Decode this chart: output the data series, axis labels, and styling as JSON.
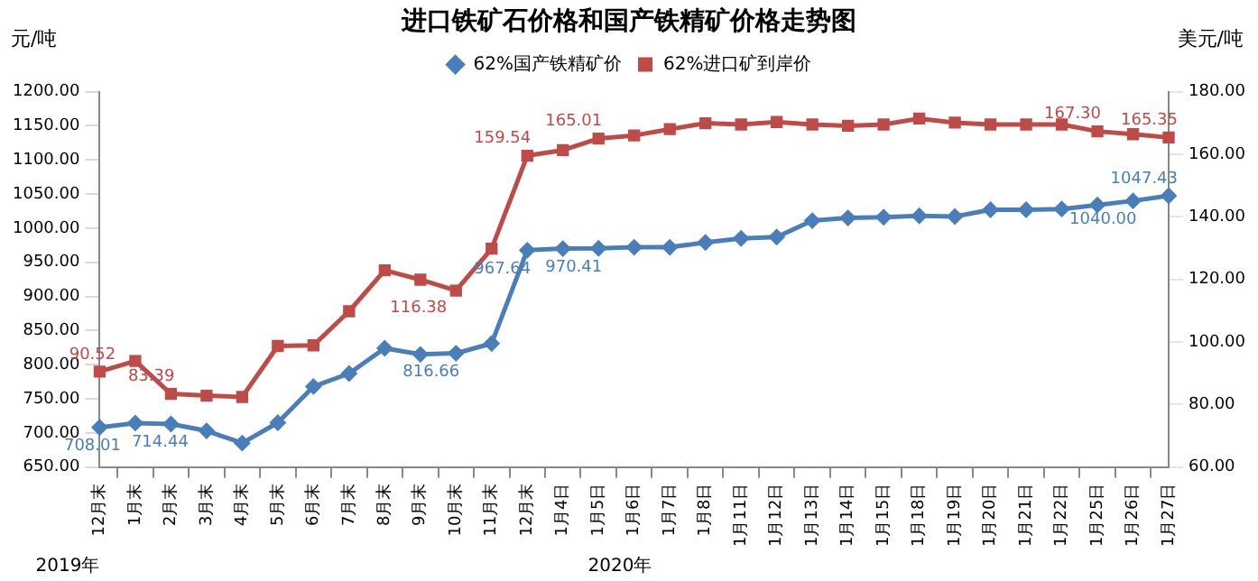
{
  "chart_data": {
    "type": "line",
    "title": "进口铁矿石价格和国产铁精矿价格走势图",
    "ylabel": "元/吨",
    "y2label": "美元/吨",
    "categories": [
      "12月末",
      "1月末",
      "2月末",
      "3月末",
      "4月末",
      "5月末",
      "6月末",
      "7月末",
      "8月末",
      "9月末",
      "10月末",
      "11月末",
      "12月末",
      "1月4日",
      "1月5日",
      "1月6日",
      "1月7日",
      "1月8日",
      "1月11日",
      "1月12日",
      "1月13日",
      "1月14日",
      "1月15日",
      "1月18日",
      "1月19日",
      "1月20日",
      "1月21日",
      "1月22日",
      "1月25日",
      "1月26日",
      "1月27日"
    ],
    "series": [
      {
        "name": "62%国产铁精矿价",
        "color": "#4a7ebb",
        "marker": "diamond",
        "values": [
          708.01,
          714.44,
          713,
          703,
          685,
          715,
          768,
          787,
          824,
          815,
          816.66,
          831,
          967.64,
          970,
          970.41,
          972,
          972,
          979,
          985,
          987,
          1011,
          1015,
          1016,
          1018,
          1017,
          1027,
          1027,
          1028,
          1034,
          1040,
          1047.43
        ],
        "value_labels": [
          "708.01",
          "714.44",
          null,
          null,
          null,
          null,
          null,
          null,
          null,
          null,
          "816.66",
          null,
          "967.64",
          null,
          "970.41",
          null,
          null,
          null,
          null,
          null,
          null,
          null,
          null,
          null,
          null,
          null,
          null,
          null,
          null,
          "1040.00",
          "1047.43"
        ]
      },
      {
        "name": "62%进口矿到岸价",
        "color": "#be4b48",
        "marker": "square",
        "axis": "y2",
        "values": [
          90.52,
          93.9,
          83.39,
          82.8,
          82.4,
          98.7,
          98.9,
          109.8,
          122.9,
          119.9,
          116.38,
          129.8,
          159.54,
          161.3,
          165.01,
          166,
          168,
          169.9,
          169.5,
          170.3,
          169.5,
          169.1,
          169.5,
          171.4,
          170.1,
          169.5,
          169.5,
          169.5,
          167.3,
          166.4,
          165.35
        ],
        "value_labels": [
          "90.52",
          null,
          "83.39",
          null,
          null,
          null,
          null,
          null,
          null,
          null,
          "116.38",
          null,
          "159.54",
          null,
          "165.01",
          null,
          null,
          null,
          null,
          null,
          null,
          null,
          null,
          null,
          null,
          null,
          null,
          null,
          "167.30",
          null,
          "165.35"
        ]
      }
    ],
    "ylim": [
      650,
      1200
    ],
    "yticks": [
      {
        "value": 650,
        "label": "650.00"
      },
      {
        "value": 700,
        "label": "700.00"
      },
      {
        "value": 750,
        "label": "750.00"
      },
      {
        "value": 800,
        "label": "800.00"
      },
      {
        "value": 850,
        "label": "850.00"
      },
      {
        "value": 900,
        "label": "900.00"
      },
      {
        "value": 950,
        "label": "950.00"
      },
      {
        "value": 1000,
        "label": "1000.00"
      },
      {
        "value": 1050,
        "label": "1050.00"
      },
      {
        "value": 1100,
        "label": "1100.00"
      },
      {
        "value": 1150,
        "label": "1150.00"
      },
      {
        "value": 1200,
        "label": "1200.00"
      }
    ],
    "y2lim": [
      60,
      180
    ],
    "y2ticks": [
      {
        "value": 60,
        "label": "60.00"
      },
      {
        "value": 80,
        "label": "80.00"
      },
      {
        "value": 100,
        "label": "100.00"
      },
      {
        "value": 120,
        "label": "120.00"
      },
      {
        "value": 140,
        "label": "140.00"
      },
      {
        "value": 160,
        "label": "160.00"
      },
      {
        "value": 180,
        "label": "180.00"
      }
    ],
    "annotations": [
      "2019年",
      "2020年"
    ],
    "grid": false,
    "legend": "top",
    "line_style": "solid"
  }
}
